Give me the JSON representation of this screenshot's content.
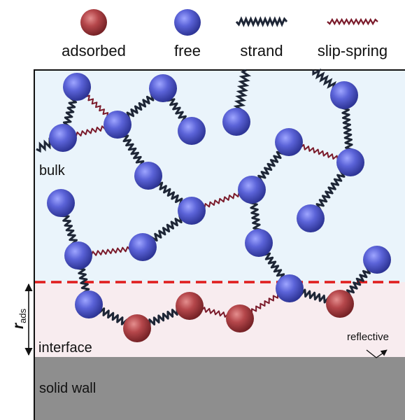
{
  "legend": {
    "adsorbed": "adsorbed",
    "free": "free",
    "strand": "strand",
    "slip_spring": "slip-spring"
  },
  "regions": {
    "bulk": "bulk",
    "interface": "interface",
    "solid_wall": "solid wall",
    "reflective": "reflective"
  },
  "axis": {
    "r": "r",
    "sub": "ads"
  },
  "colors": {
    "bulk_bg": "#eaf4fb",
    "interface_bg": "#f8ecef",
    "wall": "#8e8e8e",
    "free_bead": "#5b63d8",
    "adsorbed_bead": "#b5474b",
    "strand": "#1e2636",
    "slip_spring": "#7a1a2a",
    "dashed_line": "#e01b1b"
  }
}
